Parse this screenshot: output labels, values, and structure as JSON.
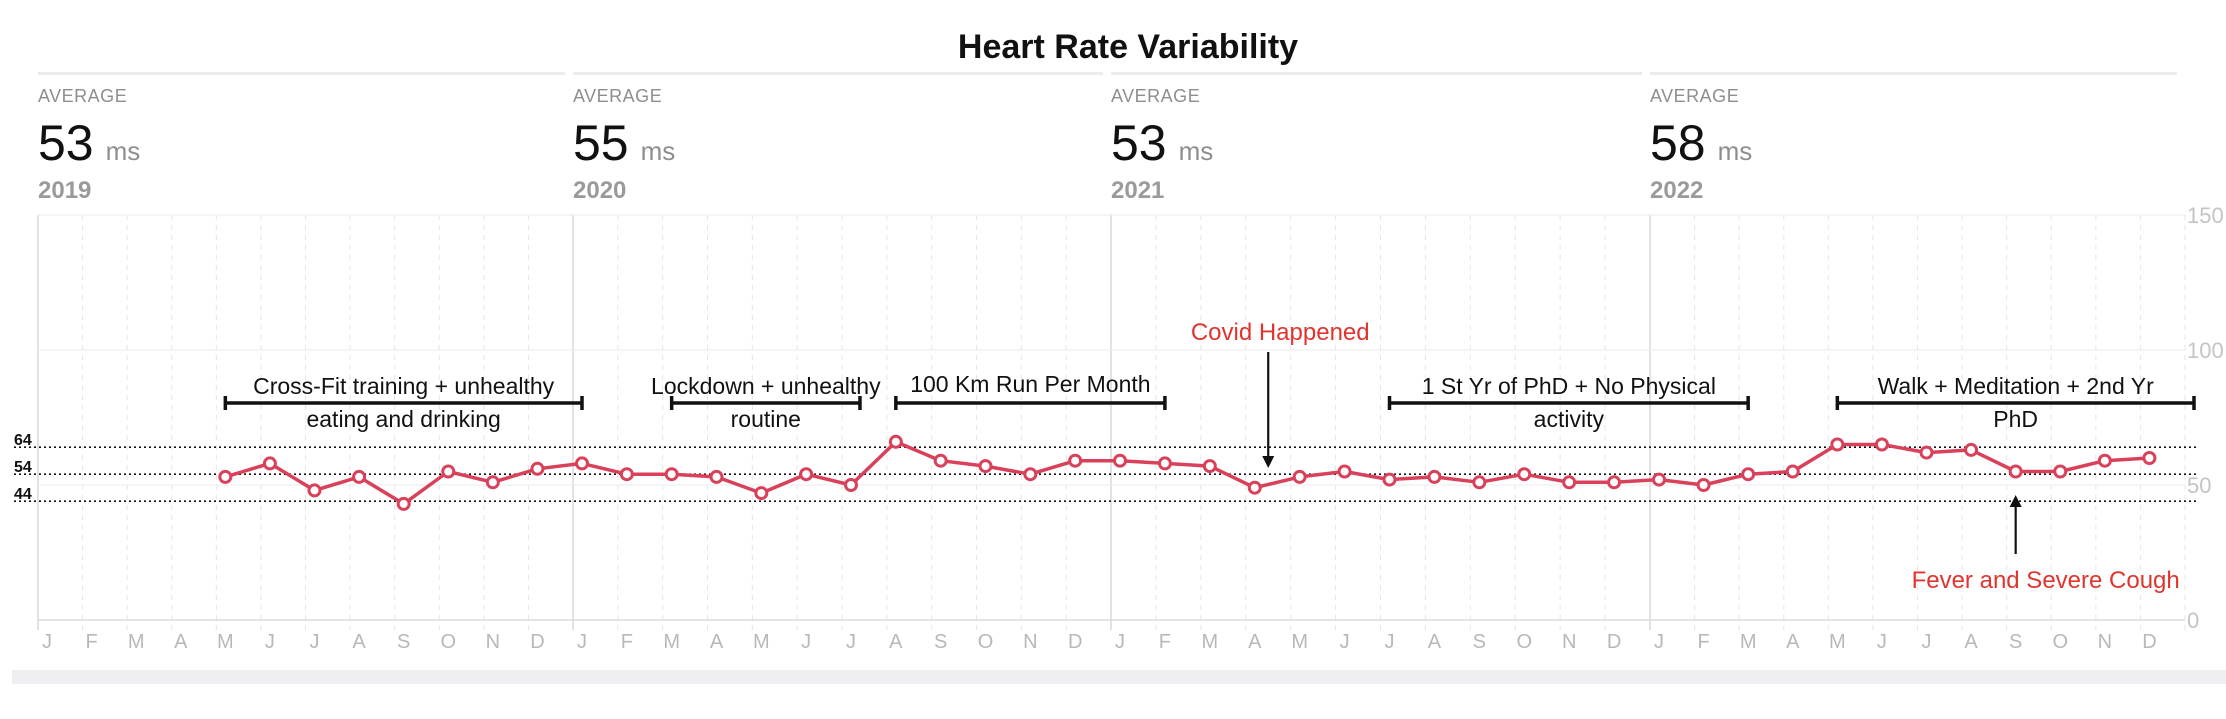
{
  "chart_data": {
    "type": "line",
    "title": "Heart Rate Variability",
    "unit": "ms",
    "ylim": [
      0,
      150
    ],
    "y_ticks": [
      0,
      50,
      100,
      150
    ],
    "month_labels": [
      "J",
      "F",
      "M",
      "A",
      "M",
      "J",
      "J",
      "A",
      "S",
      "O",
      "N",
      "D"
    ],
    "panels": [
      {
        "average_label": "AVERAGE",
        "average_value": "53",
        "unit": "ms",
        "year": "2019"
      },
      {
        "average_label": "AVERAGE",
        "average_value": "55",
        "unit": "ms",
        "year": "2020"
      },
      {
        "average_label": "AVERAGE",
        "average_value": "53",
        "unit": "ms",
        "year": "2021"
      },
      {
        "average_label": "AVERAGE",
        "average_value": "58",
        "unit": "ms",
        "year": "2022"
      }
    ],
    "reference_lines": [
      {
        "label": "64",
        "value": 64
      },
      {
        "label": "54",
        "value": 54
      },
      {
        "label": "44",
        "value": 44
      }
    ],
    "series": [
      {
        "color": "#d9415a",
        "points": [
          {
            "year": 2019,
            "month": 5,
            "value": 53
          },
          {
            "year": 2019,
            "month": 6,
            "value": 58
          },
          {
            "year": 2019,
            "month": 7,
            "value": 48
          },
          {
            "year": 2019,
            "month": 8,
            "value": 53
          },
          {
            "year": 2019,
            "month": 9,
            "value": 43
          },
          {
            "year": 2019,
            "month": 10,
            "value": 55
          },
          {
            "year": 2019,
            "month": 11,
            "value": 51
          },
          {
            "year": 2019,
            "month": 12,
            "value": 56
          },
          {
            "year": 2020,
            "month": 1,
            "value": 58
          },
          {
            "year": 2020,
            "month": 2,
            "value": 54
          },
          {
            "year": 2020,
            "month": 3,
            "value": 54
          },
          {
            "year": 2020,
            "month": 4,
            "value": 53
          },
          {
            "year": 2020,
            "month": 5,
            "value": 47
          },
          {
            "year": 2020,
            "month": 6,
            "value": 54
          },
          {
            "year": 2020,
            "month": 7,
            "value": 50
          },
          {
            "year": 2020,
            "month": 8,
            "value": 66
          },
          {
            "year": 2020,
            "month": 9,
            "value": 59
          },
          {
            "year": 2020,
            "month": 10,
            "value": 57
          },
          {
            "year": 2020,
            "month": 11,
            "value": 54
          },
          {
            "year": 2020,
            "month": 12,
            "value": 59
          },
          {
            "year": 2021,
            "month": 1,
            "value": 59
          },
          {
            "year": 2021,
            "month": 2,
            "value": 58
          },
          {
            "year": 2021,
            "month": 3,
            "value": 57
          },
          {
            "year": 2021,
            "month": 4,
            "value": 49
          },
          {
            "year": 2021,
            "month": 5,
            "value": 53
          },
          {
            "year": 2021,
            "month": 6,
            "value": 55
          },
          {
            "year": 2021,
            "month": 7,
            "value": 52
          },
          {
            "year": 2021,
            "month": 8,
            "value": 53
          },
          {
            "year": 2021,
            "month": 9,
            "value": 51
          },
          {
            "year": 2021,
            "month": 10,
            "value": 54
          },
          {
            "year": 2021,
            "month": 11,
            "value": 51
          },
          {
            "year": 2021,
            "month": 12,
            "value": 51
          },
          {
            "year": 2022,
            "month": 1,
            "value": 52
          },
          {
            "year": 2022,
            "month": 2,
            "value": 50
          },
          {
            "year": 2022,
            "month": 3,
            "value": 54
          },
          {
            "year": 2022,
            "month": 4,
            "value": 55
          },
          {
            "year": 2022,
            "month": 5,
            "value": 65
          },
          {
            "year": 2022,
            "month": 6,
            "value": 65
          },
          {
            "year": 2022,
            "month": 7,
            "value": 62
          },
          {
            "year": 2022,
            "month": 8,
            "value": 63
          },
          {
            "year": 2022,
            "month": 9,
            "value": 55
          },
          {
            "year": 2022,
            "month": 10,
            "value": 55
          },
          {
            "year": 2022,
            "month": 11,
            "value": 59
          },
          {
            "year": 2022,
            "month": 12,
            "value": 60
          }
        ]
      }
    ],
    "annotations": [
      {
        "kind": "bracket",
        "lines": [
          "Cross-Fit training + unhealthy",
          "eating and drinking"
        ],
        "from": [
          2019,
          5
        ],
        "to": [
          2019,
          13
        ],
        "color": "#111111"
      },
      {
        "kind": "bracket",
        "lines": [
          "Lockdown + unhealthy",
          "routine"
        ],
        "from": [
          2020,
          3
        ],
        "to": [
          2020,
          7.2
        ],
        "color": "#111111"
      },
      {
        "kind": "bracket",
        "lines": [
          "100 Km Run Per Month"
        ],
        "from": [
          2020,
          8
        ],
        "to": [
          2021,
          2
        ],
        "color": "#111111"
      },
      {
        "kind": "bracket",
        "lines": [
          "1 St Yr of PhD + No Physical",
          "activity"
        ],
        "from": [
          2021,
          7
        ],
        "to": [
          2022,
          3
        ],
        "color": "#111111"
      },
      {
        "kind": "bracket",
        "lines": [
          "Walk + Meditation + 2nd Yr",
          "PhD"
        ],
        "from": [
          2022,
          5
        ],
        "to": [
          2022,
          13
        ],
        "color": "#111111"
      },
      {
        "kind": "arrow-down",
        "lines": [
          "Covid Happened"
        ],
        "at": [
          2021,
          4.3
        ],
        "color": "#e0352f"
      },
      {
        "kind": "arrow-up",
        "lines": [
          "Fever and Severe Cough"
        ],
        "at": [
          2022,
          9
        ],
        "color": "#e0352f"
      }
    ]
  }
}
